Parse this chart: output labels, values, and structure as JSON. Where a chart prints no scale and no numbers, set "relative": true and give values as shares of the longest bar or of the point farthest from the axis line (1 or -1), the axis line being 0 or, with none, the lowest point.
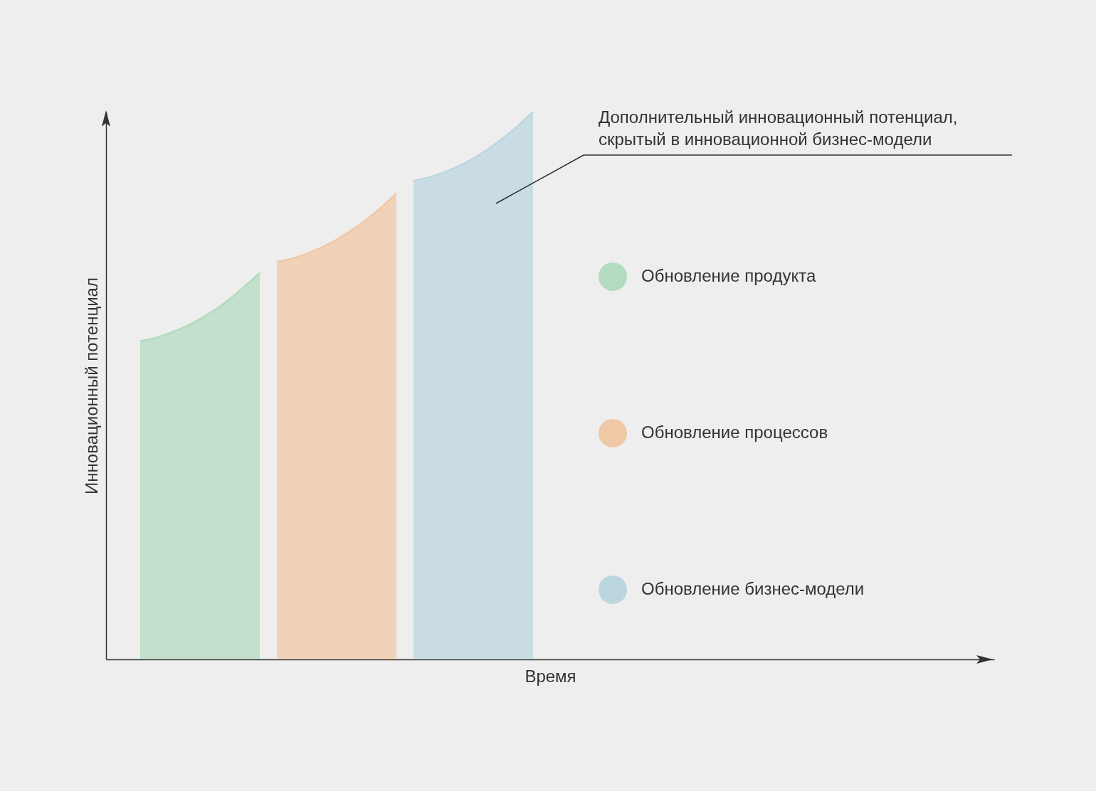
{
  "chart_data": {
    "type": "area",
    "relative": true,
    "xlabel": "Время",
    "ylabel": "Инновационный потенциал",
    "tick_labels": false,
    "legend": "right",
    "annotations": [
      "Дополнительный инновационный потенциал,\nскрытый в инновационной бизнес-модели"
    ],
    "categories": [
      null,
      null,
      null,
      null,
      null,
      null,
      null,
      null,
      null,
      null,
      null,
      null,
      null,
      null,
      null,
      null,
      null,
      null,
      null,
      null,
      null,
      null,
      null,
      null,
      null,
      null,
      null,
      null,
      null,
      null,
      null,
      null,
      null,
      null,
      null,
      null,
      null,
      null,
      null,
      null,
      null,
      null,
      null,
      null,
      null,
      null,
      null,
      null,
      null,
      null,
      null,
      null,
      null
    ],
    "series": [
      {
        "name": "Обновление продукта",
        "color": "#b3dbbf",
        "values": [
          null,
          null,
          0.581,
          0.588,
          0.599,
          0.613,
          0.631,
          0.652,
          0.678,
          0.706,
          null,
          null,
          null,
          null,
          null,
          null,
          null,
          null,
          null,
          null,
          null,
          null,
          null,
          null,
          null,
          null,
          null,
          null,
          null,
          null,
          null,
          null,
          null,
          null,
          null,
          null,
          null,
          null,
          null,
          null,
          null,
          null,
          null,
          null,
          null,
          null,
          null,
          null,
          null,
          null,
          null,
          null,
          null
        ]
      },
      {
        "name": "Обновление процессов",
        "color": "#f0c8a6",
        "values": [
          null,
          null,
          null,
          null,
          null,
          null,
          null,
          null,
          null,
          null,
          0.726,
          0.733,
          0.744,
          0.758,
          0.776,
          0.797,
          0.822,
          0.851,
          null,
          null,
          null,
          null,
          null,
          null,
          null,
          null,
          null,
          null,
          null,
          null,
          null,
          null,
          null,
          null,
          null,
          null,
          null,
          null,
          null,
          null,
          null,
          null,
          null,
          null,
          null,
          null,
          null,
          null,
          null,
          null,
          null,
          null,
          null
        ]
      },
      {
        "name": "Обновление бизнес-модели",
        "color": "#bcd6df",
        "values": [
          null,
          null,
          null,
          null,
          null,
          null,
          null,
          null,
          null,
          null,
          null,
          null,
          null,
          null,
          null,
          null,
          null,
          null,
          0.874,
          0.881,
          0.892,
          0.906,
          0.924,
          0.946,
          0.971,
          1,
          null,
          null,
          null,
          null,
          null,
          null,
          null,
          null,
          null,
          null,
          null,
          null,
          null,
          null,
          null,
          null,
          null,
          null,
          null,
          null,
          null,
          null,
          null,
          null,
          null,
          null,
          null
        ]
      }
    ]
  }
}
